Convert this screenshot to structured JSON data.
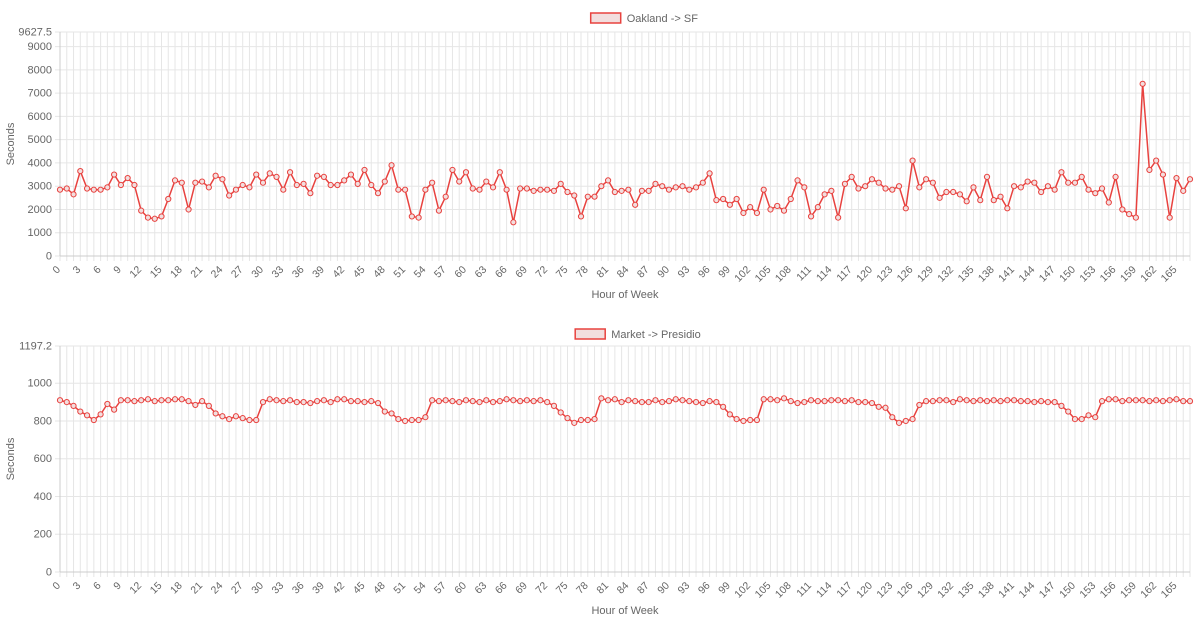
{
  "colors": {
    "line": "#e8423f",
    "legend_fill": "#f2dede",
    "grid": "#e6e6e6",
    "axis_text": "#666666"
  },
  "chart_data": [
    {
      "type": "line",
      "legend_position": "top-center",
      "grid": true,
      "xlabel": "Hour of Week",
      "ylabel": "Seconds",
      "ylim": [
        0,
        9627.5
      ],
      "ytick_values": [
        0,
        1000,
        2000,
        3000,
        4000,
        5000,
        6000,
        7000,
        8000,
        9000,
        9627.5
      ],
      "ytick_labels": [
        "0",
        "1000",
        "2000",
        "3000",
        "4000",
        "5000",
        "6000",
        "7000",
        "8000",
        "9000",
        "9627.5"
      ],
      "xtick_labels": [
        "0",
        "3",
        "6",
        "9",
        "12",
        "15",
        "18",
        "21",
        "24",
        "27",
        "30",
        "33",
        "36",
        "39",
        "42",
        "45",
        "48",
        "51",
        "54",
        "57",
        "60",
        "63",
        "66",
        "69",
        "72",
        "75",
        "78",
        "81",
        "84",
        "87",
        "90",
        "93",
        "96",
        "99",
        "102",
        "105",
        "108",
        "111",
        "114",
        "117",
        "120",
        "123",
        "126",
        "129",
        "132",
        "135",
        "138",
        "141",
        "144",
        "147",
        "150",
        "153",
        "156",
        "159",
        "162",
        "165"
      ],
      "xlim": [
        0,
        167
      ],
      "series": [
        {
          "name": "Oakland -> SF",
          "values": [
            2850,
            2900,
            2650,
            3650,
            2900,
            2850,
            2850,
            2950,
            3500,
            3050,
            3350,
            3050,
            1950,
            1650,
            1600,
            1700,
            2450,
            3250,
            3150,
            2000,
            3150,
            3200,
            2950,
            3450,
            3300,
            2600,
            2850,
            3050,
            2950,
            3500,
            3150,
            3550,
            3400,
            2850,
            3600,
            3050,
            3100,
            2700,
            3450,
            3400,
            3050,
            3050,
            3250,
            3500,
            3100,
            3700,
            3050,
            2700,
            3200,
            3900,
            2850,
            2850,
            1700,
            1650,
            2850,
            3150,
            1950,
            2550,
            3700,
            3200,
            3600,
            2900,
            2850,
            3200,
            2950,
            3600,
            2850,
            1450,
            2900,
            2900,
            2800,
            2850,
            2850,
            2800,
            3100,
            2750,
            2600,
            1700,
            2550,
            2550,
            3000,
            3250,
            2750,
            2800,
            2850,
            2200,
            2800,
            2800,
            3100,
            3000,
            2850,
            2950,
            3000,
            2850,
            2950,
            3150,
            3550,
            2400,
            2450,
            2200,
            2450,
            1850,
            2100,
            1850,
            2850,
            2000,
            2150,
            1950,
            2450,
            3250,
            2950,
            1700,
            2100,
            2650,
            2800,
            1650,
            3100,
            3400,
            2900,
            3000,
            3300,
            3150,
            2900,
            2850,
            3000,
            2050,
            4100,
            2950,
            3300,
            3150,
            2500,
            2750,
            2750,
            2650,
            2350,
            2950,
            2400,
            3400,
            2400,
            2550,
            2050,
            3000,
            2950,
            3200,
            3150,
            2750,
            3000,
            2850,
            3600,
            3150,
            3150,
            3400,
            2850,
            2700,
            2900,
            2300,
            3400,
            2000,
            1800,
            1650,
            7400,
            3700,
            4100,
            3500,
            1650,
            3350,
            2800,
            3300
          ]
        }
      ]
    },
    {
      "type": "line",
      "legend_position": "top-center",
      "grid": true,
      "xlabel": "Hour of Week",
      "ylabel": "Seconds",
      "ylim": [
        0,
        1197.2
      ],
      "ytick_values": [
        0,
        200,
        400,
        600,
        800,
        1000,
        1197.2
      ],
      "ytick_labels": [
        "0",
        "200",
        "400",
        "600",
        "800",
        "1000",
        "1197.2"
      ],
      "xtick_labels": [
        "0",
        "3",
        "6",
        "9",
        "12",
        "15",
        "18",
        "21",
        "24",
        "27",
        "30",
        "33",
        "36",
        "39",
        "42",
        "45",
        "48",
        "51",
        "54",
        "57",
        "60",
        "63",
        "66",
        "69",
        "72",
        "75",
        "78",
        "81",
        "84",
        "87",
        "90",
        "93",
        "96",
        "99",
        "102",
        "105",
        "108",
        "111",
        "114",
        "117",
        "120",
        "123",
        "126",
        "129",
        "132",
        "135",
        "138",
        "141",
        "144",
        "147",
        "150",
        "153",
        "156",
        "159",
        "162",
        "165"
      ],
      "xlim": [
        0,
        167
      ],
      "series": [
        {
          "name": "Market -> Presidio",
          "values": [
            910,
            900,
            880,
            850,
            830,
            805,
            835,
            890,
            860,
            910,
            910,
            905,
            910,
            915,
            905,
            910,
            910,
            915,
            915,
            905,
            885,
            905,
            880,
            840,
            825,
            810,
            825,
            815,
            805,
            805,
            900,
            915,
            910,
            905,
            910,
            900,
            900,
            895,
            905,
            910,
            900,
            915,
            915,
            905,
            905,
            900,
            905,
            895,
            850,
            840,
            810,
            800,
            805,
            805,
            820,
            910,
            905,
            910,
            905,
            900,
            910,
            905,
            900,
            910,
            900,
            905,
            915,
            910,
            905,
            910,
            905,
            910,
            900,
            880,
            845,
            815,
            790,
            805,
            805,
            810,
            920,
            910,
            915,
            900,
            910,
            905,
            900,
            900,
            910,
            900,
            905,
            915,
            910,
            905,
            900,
            895,
            905,
            900,
            875,
            835,
            810,
            800,
            805,
            805,
            915,
            915,
            910,
            920,
            905,
            895,
            900,
            910,
            905,
            905,
            910,
            910,
            905,
            910,
            900,
            900,
            895,
            875,
            870,
            820,
            790,
            800,
            810,
            885,
            905,
            905,
            910,
            910,
            900,
            915,
            910,
            905,
            910,
            905,
            910,
            905,
            910,
            910,
            905,
            905,
            900,
            905,
            900,
            900,
            880,
            850,
            810,
            810,
            830,
            820,
            905,
            915,
            915,
            905,
            910,
            910,
            910,
            905,
            910,
            905,
            910,
            915,
            905,
            905
          ]
        }
      ]
    }
  ]
}
